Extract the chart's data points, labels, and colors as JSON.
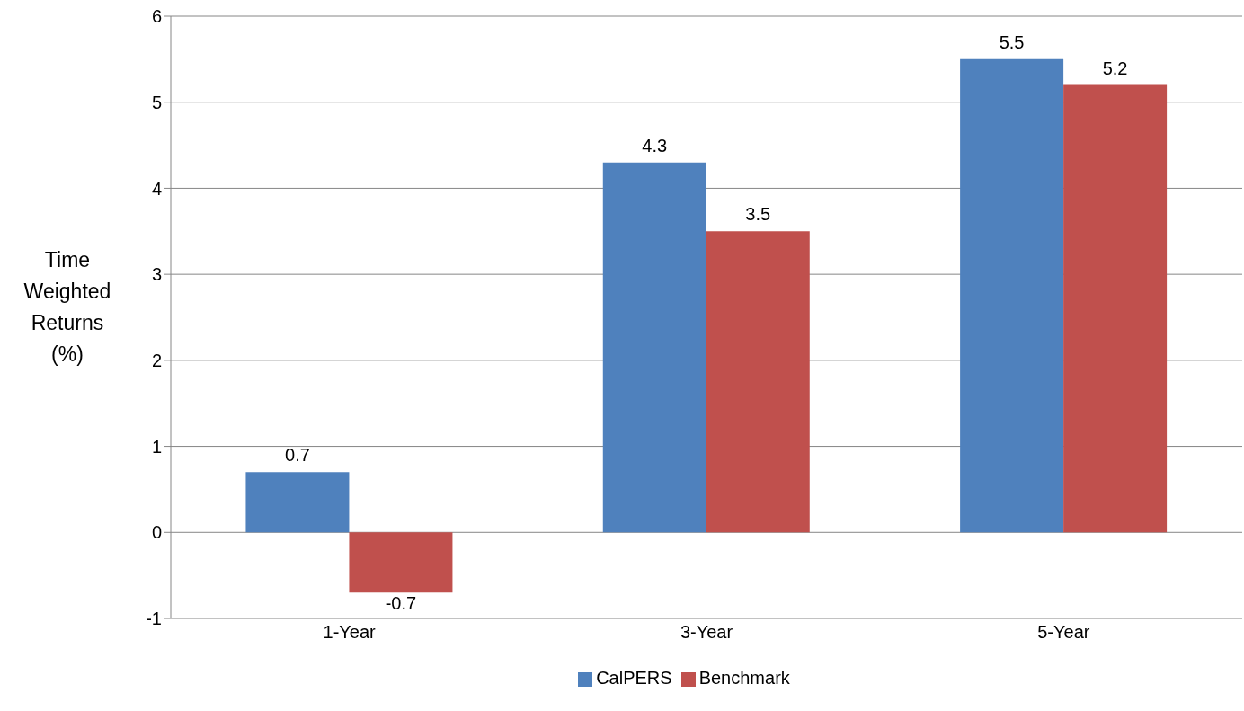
{
  "chart_data": {
    "type": "bar",
    "ylabel": "Time Weighted Returns (%)",
    "categories": [
      "1-Year",
      "3-Year",
      "5-Year"
    ],
    "series": [
      {
        "name": "CalPERS",
        "color": "#4f81bd",
        "values": [
          0.7,
          4.3,
          5.5
        ]
      },
      {
        "name": "Benchmark",
        "color": "#c0504d",
        "values": [
          -0.7,
          3.5,
          5.2
        ]
      }
    ],
    "ylim": [
      -1,
      6
    ],
    "yticks": [
      -1,
      0,
      1,
      2,
      3,
      4,
      5,
      6
    ],
    "grid": "y",
    "legend": "bottom",
    "data_labels": true
  }
}
